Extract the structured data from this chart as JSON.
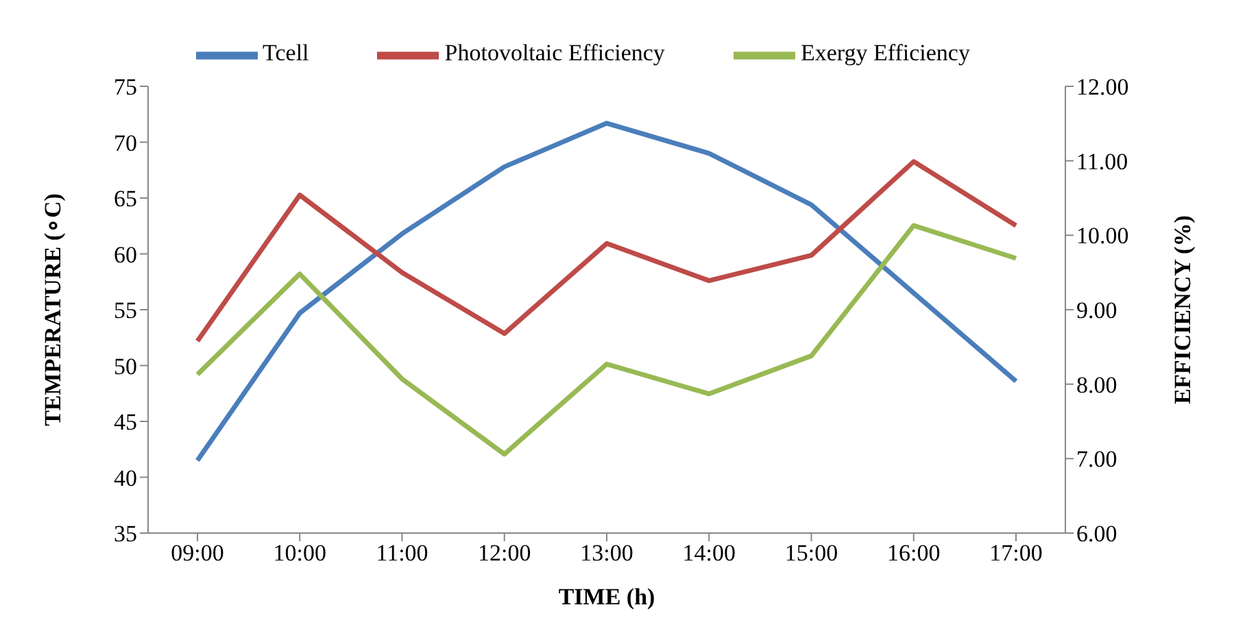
{
  "chart_data": {
    "type": "line",
    "xlabel": "TIME (h)",
    "ylabel": "TEMPERATURE (∘C)",
    "y2label": "EFFICIENCY (%)",
    "categories": [
      "09:00",
      "10:00",
      "11:00",
      "12:00",
      "13:00",
      "14:00",
      "15:00",
      "16:00",
      "17:00"
    ],
    "series": [
      {
        "name": "Tcell",
        "color": "#4a7ebb",
        "values": [
          41.5,
          54.7,
          61.8,
          67.8,
          71.7,
          69.0,
          64.4,
          56.5,
          48.6
        ]
      },
      {
        "name": "Photovoltaic Efficiency",
        "color": "#be4b48",
        "axis": "y2",
        "values": [
          8.58,
          10.54,
          9.5,
          8.68,
          9.89,
          9.39,
          9.73,
          10.99,
          10.13
        ]
      },
      {
        "name": "Exergy  Efficiency",
        "color": "#98b954",
        "axis": "y2",
        "values": [
          8.13,
          9.48,
          8.07,
          7.06,
          8.27,
          7.87,
          8.38,
          10.13,
          9.69
        ]
      }
    ],
    "ylim": [
      35,
      75
    ],
    "yticks": [
      35,
      40,
      45,
      50,
      55,
      60,
      65,
      70,
      75
    ],
    "y2lim": [
      6,
      12
    ],
    "y2ticks": [
      {
        "value": 6,
        "label": "6.00"
      },
      {
        "value": 7,
        "label": "7.00"
      },
      {
        "value": 8,
        "label": "8.00"
      },
      {
        "value": 9,
        "label": "9.00"
      },
      {
        "value": 10,
        "label": "10.00"
      },
      {
        "value": 11,
        "label": "11.00"
      },
      {
        "value": 12,
        "label": "12.00"
      }
    ],
    "grid": false,
    "legend": "top",
    "marker": "none",
    "line_style": "solid"
  }
}
